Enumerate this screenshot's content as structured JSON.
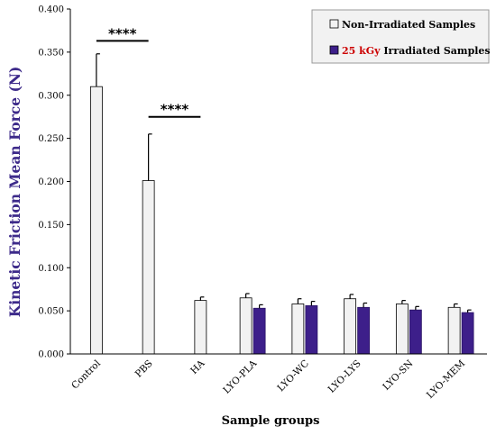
{
  "chart_data": {
    "type": "bar",
    "xlabel": "Sample groups",
    "ylabel": "Kinetic Friction Mean Force (N)",
    "ylim": [
      0,
      0.4
    ],
    "yticks": [
      "0.000",
      "0.050",
      "0.100",
      "0.150",
      "0.200",
      "0.250",
      "0.300",
      "0.350",
      "0.400"
    ],
    "categories": [
      "Control",
      "PBS",
      "HA",
      "LYO-PLA",
      "LYO-WC",
      "LYO-LYS",
      "LYO-SN",
      "LYO-MEM"
    ],
    "series": [
      {
        "name": "Non-Irradiated Samples",
        "color": "#f2f2f2",
        "values": [
          0.31,
          0.201,
          0.062,
          0.065,
          0.058,
          0.064,
          0.058,
          0.054
        ],
        "errors": [
          0.038,
          0.054,
          0.004,
          0.005,
          0.006,
          0.005,
          0.004,
          0.004
        ]
      },
      {
        "name": "Irradiated Samples",
        "name_prefix": "25 kGy",
        "prefix_color": "#cc0000",
        "color": "#3d1f8a",
        "values": [
          null,
          null,
          null,
          0.053,
          0.056,
          0.054,
          0.051,
          0.048
        ],
        "errors": [
          null,
          null,
          null,
          0.004,
          0.005,
          0.005,
          0.004,
          0.003
        ]
      }
    ],
    "legend": "top-right",
    "grid": false,
    "annotations": [
      {
        "text": "****",
        "from": "Control",
        "to": "PBS",
        "y": 0.363
      },
      {
        "text": "****",
        "from": "PBS",
        "to": "HA",
        "y": 0.275
      }
    ]
  }
}
